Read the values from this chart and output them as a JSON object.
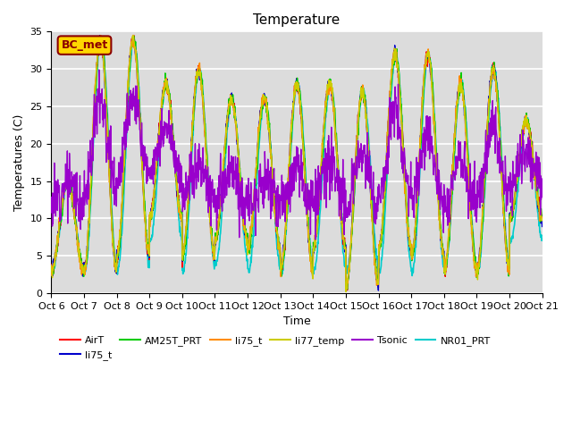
{
  "title": "Temperature",
  "xlabel": "Time",
  "ylabel": "Temperatures (C)",
  "ylim": [
    0,
    35
  ],
  "xlim": [
    0,
    15
  ],
  "x_tick_labels": [
    "Oct 6",
    "Oct 7",
    "Oct 8",
    "Oct 9",
    "Oct 10",
    "Oct 11",
    "Oct 12",
    "Oct 13",
    "Oct 14",
    "Oct 15",
    "Oct 16",
    "Oct 17",
    "Oct 18",
    "Oct 19",
    "Oct 20",
    "Oct 21"
  ],
  "annotation_text": "BC_met",
  "annotation_color": "#8B0000",
  "annotation_bg": "#FFD700",
  "series": [
    {
      "name": "AirT",
      "color": "#FF0000",
      "lw": 1.0
    },
    {
      "name": "li75_t",
      "color": "#0000CC",
      "lw": 1.0
    },
    {
      "name": "AM25T_PRT",
      "color": "#00CC00",
      "lw": 1.0
    },
    {
      "name": "li75_t",
      "color": "#FF8C00",
      "lw": 1.0
    },
    {
      "name": "li77_temp",
      "color": "#CCCC00",
      "lw": 1.0
    },
    {
      "name": "Tsonic",
      "color": "#9900CC",
      "lw": 1.0
    },
    {
      "name": "NR01_PRT",
      "color": "#00CCCC",
      "lw": 1.2
    }
  ],
  "plot_bg": "#DCDCDC",
  "grid_color": "white",
  "title_fontsize": 11,
  "label_fontsize": 9,
  "tick_fontsize": 8
}
